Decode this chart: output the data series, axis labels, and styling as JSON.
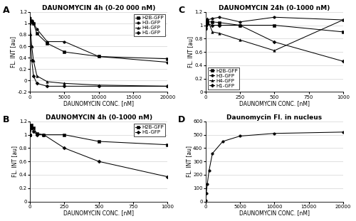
{
  "panel_A": {
    "title": "DAUNOMYCIN 4h (0-20 000 nM)",
    "xlabel": "DAUNOMYCIN CONC. [nM]",
    "ylabel": "FL. INT [au]",
    "xlim": [
      0,
      20000
    ],
    "ylim": [
      -0.2,
      1.2
    ],
    "yticks": [
      -0.2,
      0,
      0.2,
      0.4,
      0.6,
      0.8,
      1.0,
      1.2
    ],
    "xticks": [
      0,
      5000,
      10000,
      15000,
      20000
    ],
    "series": {
      "H2B-GFP": {
        "x": [
          0,
          250,
          500,
          1000,
          2500,
          5000,
          10000,
          20000
        ],
        "y": [
          1.05,
          1.02,
          1.0,
          0.82,
          0.65,
          0.5,
          0.42,
          0.38
        ],
        "marker": "s"
      },
      "H3-GFP": {
        "x": [
          0,
          250,
          500,
          1000,
          2500,
          5000,
          10000,
          20000
        ],
        "y": [
          1.1,
          1.05,
          1.0,
          0.9,
          0.68,
          0.68,
          0.42,
          0.32
        ],
        "marker": "o"
      },
      "H4-GFP": {
        "x": [
          0,
          250,
          500,
          1000,
          2500,
          5000,
          10000,
          20000
        ],
        "y": [
          1.0,
          0.6,
          0.35,
          0.08,
          -0.02,
          -0.05,
          -0.08,
          -0.1
        ],
        "marker": "^"
      },
      "H1-GFP": {
        "x": [
          0,
          250,
          500,
          1000,
          2500,
          5000,
          10000,
          20000
        ],
        "y": [
          0.8,
          0.35,
          0.08,
          -0.05,
          -0.1,
          -0.1,
          -0.1,
          -0.1
        ],
        "marker": "D"
      }
    },
    "legend_loc": "upper right"
  },
  "panel_B": {
    "title": "DAUNOMYCIN 4h (0-1000 nM)",
    "xlabel": "DAUNOMYCIN CONC. [nM]",
    "ylabel": "FL. INT [au]",
    "xlim": [
      0,
      1000
    ],
    "ylim": [
      0,
      1.2
    ],
    "yticks": [
      0,
      0.2,
      0.4,
      0.6,
      0.8,
      1.0,
      1.2
    ],
    "xticks": [
      0,
      250,
      500,
      750,
      1000
    ],
    "series": {
      "H2B-GFP": {
        "x": [
          0,
          10,
          25,
          50,
          100,
          250,
          500,
          1000
        ],
        "y": [
          1.0,
          1.15,
          1.1,
          1.02,
          1.0,
          1.0,
          0.9,
          0.85
        ],
        "marker": "s"
      },
      "H1-GFP": {
        "x": [
          0,
          10,
          25,
          50,
          100,
          250,
          500,
          1000
        ],
        "y": [
          1.0,
          1.1,
          1.05,
          1.0,
          1.0,
          0.8,
          0.6,
          0.37
        ],
        "marker": "D"
      }
    },
    "legend_loc": "upper right"
  },
  "panel_C": {
    "title": "DAUNOMYCIN 24h (0-1000 nM)",
    "xlabel": "DAUNOMYCIN CONC. [nM]",
    "ylabel": "FL. INT [au]",
    "xlim": [
      0,
      1000
    ],
    "ylim": [
      0,
      1.2
    ],
    "yticks": [
      0,
      0.2,
      0.4,
      0.6,
      0.8,
      1.0,
      1.2
    ],
    "xticks": [
      0,
      250,
      500,
      750,
      1000
    ],
    "series": {
      "H2B-GFP": {
        "x": [
          0,
          10,
          50,
          100,
          250,
          500,
          1000
        ],
        "y": [
          1.0,
          1.05,
          1.05,
          1.04,
          1.0,
          1.0,
          0.9
        ],
        "marker": "s"
      },
      "H3-GFP": {
        "x": [
          0,
          10,
          50,
          100,
          250,
          500,
          1000
        ],
        "y": [
          1.0,
          1.08,
          1.1,
          1.12,
          1.05,
          1.12,
          1.08
        ],
        "marker": "o"
      },
      "H4-GFP": {
        "x": [
          0,
          10,
          50,
          100,
          250,
          500,
          1000
        ],
        "y": [
          0.95,
          1.1,
          0.9,
          0.88,
          0.78,
          0.62,
          1.08
        ],
        "marker": "^"
      },
      "H1-GFP": {
        "x": [
          0,
          10,
          50,
          100,
          250,
          500,
          1000
        ],
        "y": [
          0.95,
          1.02,
          1.0,
          1.0,
          1.0,
          0.75,
          0.46
        ],
        "marker": "D"
      }
    },
    "legend_loc": "lower left"
  },
  "panel_D": {
    "title": "Daunomycin Fl. in nucleus",
    "xlabel": "DAUNOMYCIN CONC. [nM]",
    "ylabel": "FL. INT [au]",
    "xlim": [
      0,
      20000
    ],
    "ylim": [
      0,
      600
    ],
    "yticks": [
      0,
      100,
      200,
      300,
      400,
      500,
      600
    ],
    "xticks": [
      0,
      5000,
      10000,
      15000,
      20000
    ],
    "series": {
      "Fl": {
        "x": [
          0,
          100,
          250,
          500,
          1000,
          2500,
          5000,
          10000,
          20000
        ],
        "y": [
          10,
          60,
          130,
          230,
          360,
          450,
          490,
          510,
          520
        ],
        "marker": "o"
      }
    },
    "legend_loc": null
  },
  "label_fontsize": 5.5,
  "title_fontsize": 6.5,
  "tick_fontsize": 5,
  "legend_fontsize": 5,
  "marker_size": 2.5,
  "line_width": 0.75,
  "color": "black"
}
